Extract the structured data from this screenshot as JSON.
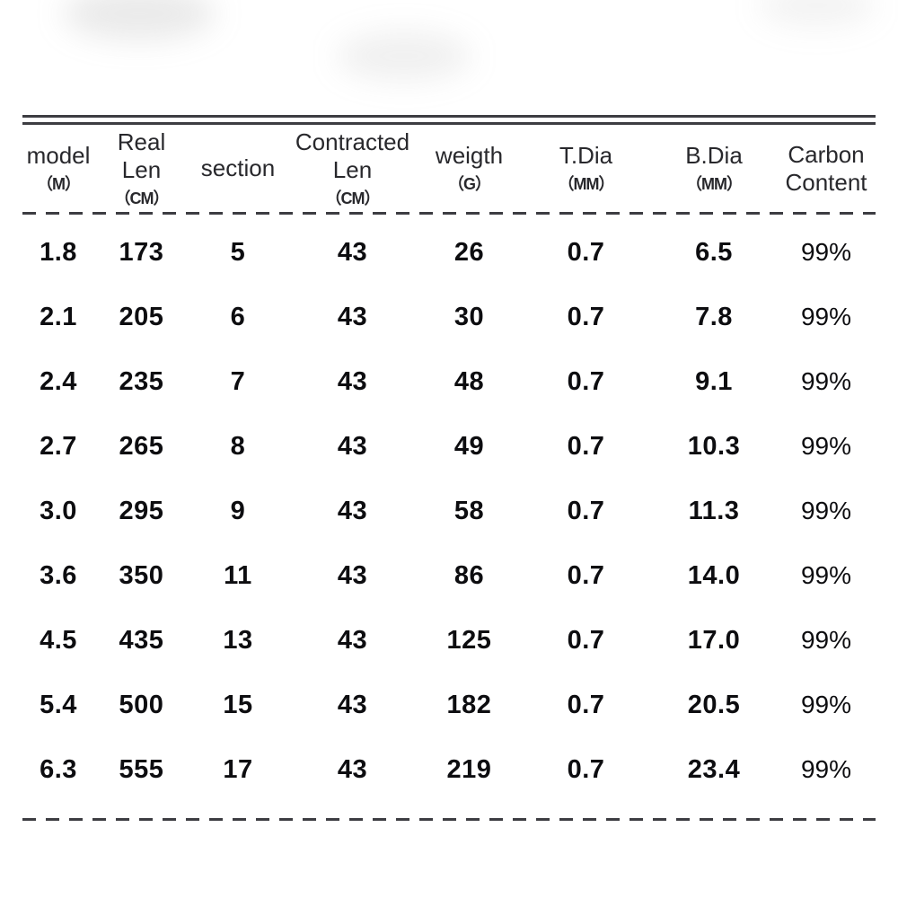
{
  "colors": {
    "background": "#ffffff",
    "rule": "#3d3d42",
    "header_ink": "#28282c",
    "data_ink": "#0d0d10"
  },
  "table": {
    "columns": [
      {
        "key": "model",
        "label_lines": [
          "model"
        ],
        "unit": "（M）"
      },
      {
        "key": "real-len",
        "label_lines": [
          "Real",
          "Len"
        ],
        "unit": "（CM）"
      },
      {
        "key": "section",
        "label_lines": [
          "section"
        ],
        "unit": ""
      },
      {
        "key": "contracted-len",
        "label_lines": [
          "Contracted",
          "Len"
        ],
        "unit": "（CM）"
      },
      {
        "key": "weight",
        "label_lines": [
          "weigth"
        ],
        "unit": "（G）"
      },
      {
        "key": "t-dia",
        "label_lines": [
          "T.Dia"
        ],
        "unit": "（MM）"
      },
      {
        "key": "b-dia",
        "label_lines": [
          "B.Dia"
        ],
        "unit": "（MM）"
      },
      {
        "key": "carbon-content",
        "label_lines": [
          "Carbon",
          "Content"
        ],
        "unit": ""
      }
    ],
    "rows": [
      [
        "1.8",
        "173",
        "5",
        "43",
        "26",
        "0.7",
        "6.5",
        "99%"
      ],
      [
        "2.1",
        "205",
        "6",
        "43",
        "30",
        "0.7",
        "7.8",
        "99%"
      ],
      [
        "2.4",
        "235",
        "7",
        "43",
        "48",
        "0.7",
        "9.1",
        "99%"
      ],
      [
        "2.7",
        "265",
        "8",
        "43",
        "49",
        "0.7",
        "10.3",
        "99%"
      ],
      [
        "3.0",
        "295",
        "9",
        "43",
        "58",
        "0.7",
        "11.3",
        "99%"
      ],
      [
        "3.6",
        "350",
        "11",
        "43",
        "86",
        "0.7",
        "14.0",
        "99%"
      ],
      [
        "4.5",
        "435",
        "13",
        "43",
        "125",
        "0.7",
        "17.0",
        "99%"
      ],
      [
        "5.4",
        "500",
        "15",
        "43",
        "182",
        "0.7",
        "20.5",
        "99%"
      ],
      [
        "6.3",
        "555",
        "17",
        "43",
        "219",
        "0.7",
        "23.4",
        "99%"
      ]
    ]
  },
  "chart_data": {
    "type": "table",
    "columns": [
      "model (M)",
      "Real Len (CM)",
      "section",
      "Contracted Len (CM)",
      "weigth (G)",
      "T.Dia (MM)",
      "B.Dia (MM)",
      "Carbon Content"
    ],
    "rows": [
      [
        1.8,
        173,
        5,
        43,
        26,
        0.7,
        6.5,
        "99%"
      ],
      [
        2.1,
        205,
        6,
        43,
        30,
        0.7,
        7.8,
        "99%"
      ],
      [
        2.4,
        235,
        7,
        43,
        48,
        0.7,
        9.1,
        "99%"
      ],
      [
        2.7,
        265,
        8,
        43,
        49,
        0.7,
        10.3,
        "99%"
      ],
      [
        3.0,
        295,
        9,
        43,
        58,
        0.7,
        11.3,
        "99%"
      ],
      [
        3.6,
        350,
        11,
        43,
        86,
        0.7,
        14.0,
        "99%"
      ],
      [
        4.5,
        435,
        13,
        43,
        125,
        0.7,
        17.0,
        "99%"
      ],
      [
        5.4,
        500,
        15,
        43,
        182,
        0.7,
        20.5,
        "99%"
      ],
      [
        6.3,
        555,
        17,
        43,
        219,
        0.7,
        23.4,
        "99%"
      ]
    ],
    "layout": {
      "grid": false,
      "header_divider": "dashed",
      "top_rule": "double-solid",
      "bottom_rule": "dashed"
    }
  }
}
